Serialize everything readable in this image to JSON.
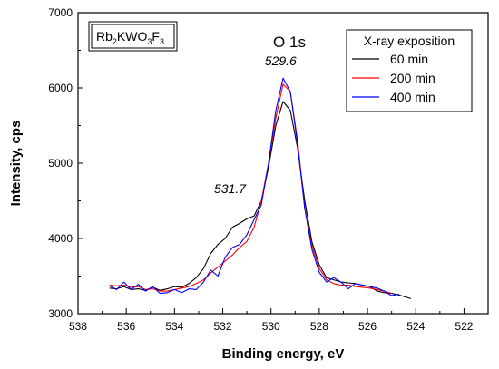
{
  "chart_data": {
    "type": "line",
    "title": "O 1s",
    "xlabel": "Binding energy, eV",
    "ylabel": "Intensity, cps",
    "xlim": [
      538,
      521
    ],
    "ylim": [
      3000,
      7000
    ],
    "x_reversed": true,
    "xticks": [
      538,
      536,
      534,
      532,
      530,
      528,
      526,
      524,
      522
    ],
    "yticks": [
      3000,
      4000,
      5000,
      6000,
      7000
    ],
    "compound": {
      "parts": [
        "Rb",
        "2",
        "KWO",
        "3",
        "F",
        "3"
      ]
    },
    "legend": {
      "title": "X-ray exposition",
      "position": "top-right"
    },
    "annotations": [
      {
        "text": "529.6",
        "x": 529.6,
        "y": 6300
      },
      {
        "text": "531.7",
        "x": 531.7,
        "y": 4600
      }
    ],
    "series": [
      {
        "name": "60 min",
        "color": "#000000",
        "points": [
          [
            536.7,
            3340
          ],
          [
            536.4,
            3330
          ],
          [
            536.1,
            3360
          ],
          [
            535.8,
            3320
          ],
          [
            535.5,
            3330
          ],
          [
            535.2,
            3310
          ],
          [
            534.9,
            3350
          ],
          [
            534.6,
            3310
          ],
          [
            534.3,
            3330
          ],
          [
            534.0,
            3360
          ],
          [
            533.7,
            3350
          ],
          [
            533.4,
            3400
          ],
          [
            533.1,
            3480
          ],
          [
            532.8,
            3600
          ],
          [
            532.5,
            3800
          ],
          [
            532.2,
            3920
          ],
          [
            531.9,
            4000
          ],
          [
            531.6,
            4150
          ],
          [
            531.3,
            4200
          ],
          [
            531.0,
            4260
          ],
          [
            530.7,
            4300
          ],
          [
            530.4,
            4500
          ],
          [
            530.1,
            4950
          ],
          [
            529.8,
            5500
          ],
          [
            529.5,
            5820
          ],
          [
            529.2,
            5700
          ],
          [
            528.9,
            5200
          ],
          [
            528.6,
            4500
          ],
          [
            528.3,
            3950
          ],
          [
            528.0,
            3650
          ],
          [
            527.7,
            3480
          ],
          [
            527.4,
            3450
          ],
          [
            527.1,
            3420
          ],
          [
            526.8,
            3410
          ],
          [
            526.5,
            3400
          ],
          [
            526.2,
            3380
          ],
          [
            525.9,
            3360
          ],
          [
            525.6,
            3300
          ],
          [
            525.3,
            3280
          ],
          [
            525.0,
            3270
          ],
          [
            524.7,
            3250
          ],
          [
            524.2,
            3200
          ]
        ]
      },
      {
        "name": "200 min",
        "color": "#ff0000",
        "points": [
          [
            536.7,
            3380
          ],
          [
            536.4,
            3370
          ],
          [
            536.1,
            3380
          ],
          [
            535.8,
            3350
          ],
          [
            535.5,
            3360
          ],
          [
            535.2,
            3320
          ],
          [
            534.9,
            3330
          ],
          [
            534.6,
            3300
          ],
          [
            534.3,
            3300
          ],
          [
            534.0,
            3320
          ],
          [
            533.7,
            3340
          ],
          [
            533.4,
            3360
          ],
          [
            533.1,
            3400
          ],
          [
            532.8,
            3450
          ],
          [
            532.5,
            3540
          ],
          [
            532.2,
            3620
          ],
          [
            531.9,
            3700
          ],
          [
            531.6,
            3780
          ],
          [
            531.3,
            3880
          ],
          [
            531.0,
            3960
          ],
          [
            530.7,
            4150
          ],
          [
            530.4,
            4500
          ],
          [
            530.1,
            5000
          ],
          [
            529.8,
            5600
          ],
          [
            529.5,
            6050
          ],
          [
            529.2,
            5950
          ],
          [
            528.9,
            5300
          ],
          [
            528.6,
            4400
          ],
          [
            528.3,
            3900
          ],
          [
            528.0,
            3600
          ],
          [
            527.7,
            3450
          ],
          [
            527.4,
            3400
          ],
          [
            527.1,
            3380
          ],
          [
            526.8,
            3380
          ],
          [
            526.5,
            3360
          ],
          [
            526.2,
            3350
          ],
          [
            525.9,
            3340
          ],
          [
            525.6,
            3320
          ],
          [
            525.3,
            3300
          ],
          [
            525.0,
            3270
          ]
        ]
      },
      {
        "name": "400 min",
        "color": "#0000ff",
        "points": [
          [
            536.7,
            3370
          ],
          [
            536.4,
            3320
          ],
          [
            536.1,
            3420
          ],
          [
            535.8,
            3320
          ],
          [
            535.5,
            3390
          ],
          [
            535.2,
            3300
          ],
          [
            534.9,
            3360
          ],
          [
            534.6,
            3270
          ],
          [
            534.3,
            3280
          ],
          [
            534.0,
            3320
          ],
          [
            533.7,
            3280
          ],
          [
            533.4,
            3330
          ],
          [
            533.1,
            3320
          ],
          [
            532.8,
            3420
          ],
          [
            532.5,
            3580
          ],
          [
            532.2,
            3500
          ],
          [
            531.9,
            3750
          ],
          [
            531.6,
            3880
          ],
          [
            531.3,
            3920
          ],
          [
            531.0,
            4050
          ],
          [
            530.7,
            4250
          ],
          [
            530.4,
            4450
          ],
          [
            530.1,
            5000
          ],
          [
            529.8,
            5700
          ],
          [
            529.5,
            6130
          ],
          [
            529.2,
            5950
          ],
          [
            528.9,
            5250
          ],
          [
            528.6,
            4400
          ],
          [
            528.3,
            3850
          ],
          [
            528.0,
            3550
          ],
          [
            527.7,
            3420
          ],
          [
            527.4,
            3480
          ],
          [
            527.1,
            3420
          ],
          [
            526.8,
            3330
          ],
          [
            526.5,
            3400
          ],
          [
            526.2,
            3380
          ],
          [
            525.9,
            3360
          ],
          [
            525.6,
            3340
          ],
          [
            525.3,
            3300
          ],
          [
            525.0,
            3240
          ],
          [
            524.7,
            3260
          ]
        ]
      }
    ]
  }
}
